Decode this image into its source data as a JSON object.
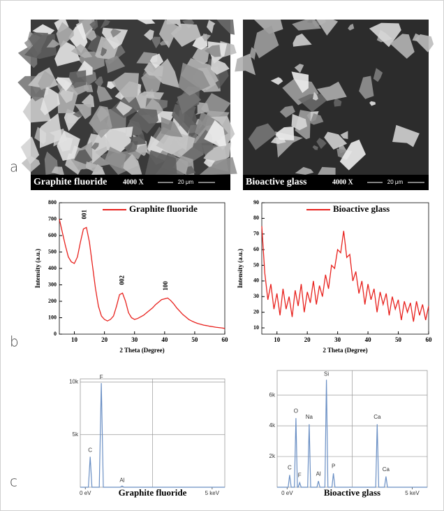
{
  "panel_labels": [
    "a",
    "b",
    "c"
  ],
  "images": [
    {
      "caption": "Graphite fluoride",
      "magnification": "4000 X",
      "scale_bar": "20 μm"
    },
    {
      "caption": "Bioactive glass",
      "magnification": "4000 X",
      "scale_bar": "20 μm"
    }
  ],
  "chart_data": [
    {
      "type": "line",
      "xlabel": "2 Theta (Degree)",
      "ylabel": "Intensity (a.u.)",
      "legend": "upper right",
      "x": [
        5,
        6,
        7,
        8,
        9,
        10,
        11,
        12,
        13,
        14,
        15,
        16,
        17,
        18,
        19,
        20,
        21,
        22,
        23,
        24,
        25,
        26,
        27,
        28,
        29,
        30,
        31,
        32,
        33,
        34,
        35,
        36,
        37,
        38,
        39,
        40,
        41,
        42,
        43,
        44,
        45,
        46,
        47,
        48,
        49,
        50,
        51,
        52,
        53,
        54,
        55,
        56,
        57,
        58,
        59,
        60
      ],
      "series": [
        {
          "name": "Graphite fluoride",
          "color": "#e8201c",
          "values": [
            700,
            620,
            540,
            470,
            440,
            430,
            470,
            560,
            640,
            650,
            560,
            420,
            280,
            170,
            110,
            90,
            80,
            90,
            110,
            170,
            240,
            250,
            200,
            130,
            100,
            90,
            95,
            105,
            115,
            130,
            145,
            160,
            180,
            195,
            210,
            215,
            220,
            205,
            185,
            160,
            140,
            120,
            105,
            90,
            80,
            72,
            65,
            60,
            55,
            52,
            48,
            45,
            42,
            40,
            38,
            35
          ]
        }
      ],
      "xlim": [
        5,
        60
      ],
      "xticks": [
        10,
        20,
        30,
        40,
        50,
        60
      ],
      "ylim": [
        0,
        800
      ],
      "yticks": [
        0,
        100,
        200,
        300,
        400,
        500,
        600,
        700,
        800
      ],
      "annotations": [
        {
          "text": "001",
          "x": 13.5,
          "y": 700
        },
        {
          "text": "002",
          "x": 26,
          "y": 300
        },
        {
          "text": "100",
          "x": 40.5,
          "y": 265
        }
      ]
    },
    {
      "type": "line",
      "xlabel": "2 Theta (Degree)",
      "ylabel": "Intensity (a.u.)",
      "legend": "upper right",
      "x": [
        5,
        6,
        7,
        8,
        9,
        10,
        11,
        12,
        13,
        14,
        15,
        16,
        17,
        18,
        19,
        20,
        21,
        22,
        23,
        24,
        25,
        26,
        27,
        28,
        29,
        30,
        31,
        32,
        33,
        34,
        35,
        36,
        37,
        38,
        39,
        40,
        41,
        42,
        43,
        44,
        45,
        46,
        47,
        48,
        49,
        50,
        51,
        52,
        53,
        54,
        55,
        56,
        57,
        58,
        59,
        60
      ],
      "series": [
        {
          "name": "Bioactive glass",
          "color": "#e8201c",
          "values": [
            75,
            45,
            28,
            38,
            22,
            32,
            18,
            35,
            22,
            30,
            17,
            34,
            24,
            38,
            20,
            33,
            26,
            40,
            25,
            37,
            30,
            44,
            35,
            50,
            48,
            60,
            58,
            72,
            55,
            57,
            40,
            46,
            32,
            40,
            25,
            38,
            28,
            35,
            20,
            33,
            25,
            32,
            18,
            30,
            22,
            28,
            15,
            27,
            20,
            26,
            14,
            27,
            18,
            25,
            15,
            24
          ]
        }
      ],
      "xlim": [
        5,
        60
      ],
      "xticks": [
        10,
        20,
        30,
        40,
        50,
        60
      ],
      "ylim": [
        6,
        90
      ],
      "yticks": [
        10,
        20,
        30,
        40,
        50,
        60,
        70,
        80,
        90
      ]
    },
    {
      "type": "spectrum",
      "caption": "Graphite fluoride",
      "color": "#6a8fc4",
      "grid": true,
      "x": [
        -0.2,
        0.12,
        0.19,
        0.26,
        0.55,
        0.63,
        0.71,
        1.38,
        1.45,
        1.52,
        5.5
      ],
      "values": [
        0,
        0,
        2900,
        0,
        0,
        9900,
        0,
        0,
        120,
        0,
        0
      ],
      "xlim": [
        -0.2,
        5.5
      ],
      "xticks": [
        {
          "value": 0,
          "label": "0 eV"
        },
        {
          "value": 5,
          "label": "5 keV"
        }
      ],
      "ylim": [
        0,
        10300
      ],
      "yticks": [
        {
          "value": 5000,
          "label": "5k"
        },
        {
          "value": 10000,
          "label": "10k"
        }
      ],
      "annotations": [
        {
          "text": "C",
          "x": 0.19,
          "y": 3500
        },
        {
          "text": "F",
          "x": 0.63,
          "y": 10450
        },
        {
          "text": "Al",
          "x": 1.45,
          "y": 650
        }
      ]
    },
    {
      "type": "spectrum",
      "caption": "Bioactive glass",
      "color": "#6a8fc4",
      "grid": true,
      "x": [
        -0.4,
        0.04,
        0.1,
        0.16,
        0.29,
        0.35,
        0.41,
        0.44,
        0.5,
        0.56,
        0.82,
        0.88,
        0.94,
        1.19,
        1.25,
        1.31,
        1.51,
        1.57,
        1.63,
        1.79,
        1.85,
        1.91,
        3.54,
        3.6,
        3.66,
        3.89,
        3.95,
        4.01,
        5.6
      ],
      "values": [
        0,
        0,
        800,
        0,
        0,
        4500,
        0,
        0,
        300,
        0,
        0,
        4100,
        0,
        0,
        400,
        0,
        0,
        7000,
        0,
        0,
        900,
        0,
        0,
        4100,
        0,
        0,
        700,
        0,
        0
      ],
      "xlim": [
        -0.4,
        5.6
      ],
      "xticks": [
        {
          "value": 0,
          "label": "0 eV"
        },
        {
          "value": 5,
          "label": "5 keV"
        }
      ],
      "ylim": [
        0,
        7600
      ],
      "yticks": [
        {
          "value": 2000,
          "label": "2k"
        },
        {
          "value": 4000,
          "label": "4k"
        },
        {
          "value": 6000,
          "label": "6k"
        }
      ],
      "annotations": [
        {
          "text": "C",
          "x": 0.1,
          "y": 1250
        },
        {
          "text": "O",
          "x": 0.35,
          "y": 4950
        },
        {
          "text": "F",
          "x": 0.5,
          "y": 750
        },
        {
          "text": "Na",
          "x": 0.88,
          "y": 4550
        },
        {
          "text": "Al",
          "x": 1.25,
          "y": 850
        },
        {
          "text": "Si",
          "x": 1.57,
          "y": 7350
        },
        {
          "text": "P",
          "x": 1.85,
          "y": 1350
        },
        {
          "text": "Ca",
          "x": 3.6,
          "y": 4550
        },
        {
          "text": "Ca",
          "x": 3.95,
          "y": 1150
        }
      ]
    }
  ]
}
